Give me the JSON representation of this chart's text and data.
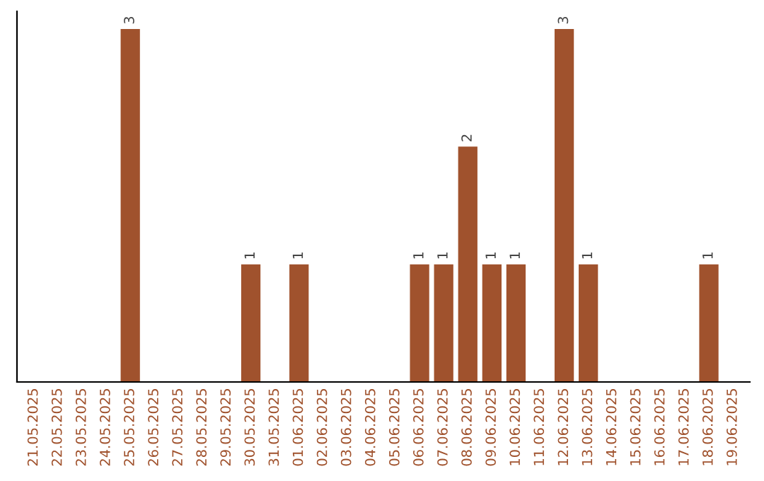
{
  "chart_data": {
    "type": "bar",
    "categories": [
      "21.05.2025",
      "22.05.2025",
      "23.05.2025",
      "24.05.2025",
      "25.05.2025",
      "26.05.2025",
      "27.05.2025",
      "28.05.2025",
      "29.05.2025",
      "30.05.2025",
      "31.05.2025",
      "01.06.2025",
      "02.06.2025",
      "03.06.2025",
      "04.06.2025",
      "05.06.2025",
      "06.06.2025",
      "07.06.2025",
      "08.06.2025",
      "09.06.2025",
      "10.06.2025",
      "11.06.2025",
      "12.06.2025",
      "13.06.2025",
      "14.06.2025",
      "15.06.2025",
      "16.06.2025",
      "17.06.2025",
      "18.06.2025",
      "19.06.2025"
    ],
    "values": [
      0,
      0,
      0,
      0,
      3,
      0,
      0,
      0,
      0,
      1,
      0,
      1,
      0,
      0,
      0,
      0,
      1,
      1,
      2,
      1,
      1,
      0,
      3,
      1,
      0,
      0,
      0,
      0,
      1,
      0
    ],
    "color": "#a0522d",
    "value_labels": [
      null,
      null,
      null,
      null,
      "3",
      null,
      null,
      null,
      null,
      "1",
      null,
      "1",
      null,
      null,
      null,
      null,
      "1",
      "1",
      "2",
      "1",
      "1",
      null,
      "3",
      "1",
      null,
      null,
      null,
      null,
      "1",
      null
    ],
    "grid": false,
    "legend": false,
    "tick_labels": "x"
  }
}
